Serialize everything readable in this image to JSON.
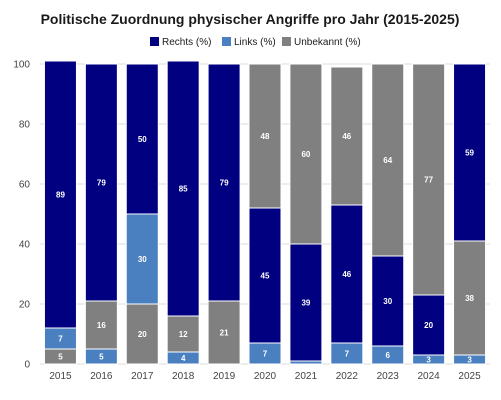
{
  "chart_data": {
    "type": "bar",
    "stacked": true,
    "title": "Politische Zuordnung physischer Angriffe pro Jahr (2015-2025)",
    "categories": [
      "2015",
      "2016",
      "2017",
      "2018",
      "2019",
      "2020",
      "2021",
      "2022",
      "2023",
      "2024",
      "2025"
    ],
    "series": [
      {
        "name": "Unbekannt (%)",
        "color": "#808080",
        "values": [
          5,
          16,
          20,
          12,
          21,
          48,
          60,
          46,
          64,
          77,
          38
        ]
      },
      {
        "name": "Links (%)",
        "color": "#4a7fc0",
        "values": [
          7,
          5,
          30,
          4,
          0,
          7,
          1,
          7,
          6,
          3,
          3
        ]
      },
      {
        "name": "Rechts (%)",
        "color": "#000080",
        "values": [
          89,
          79,
          50,
          85,
          79,
          45,
          39,
          46,
          30,
          20,
          59
        ]
      }
    ],
    "stack_order_bottom_to_top": [
      [
        "Unbekannt (%)",
        "Links (%)",
        "Rechts (%)"
      ],
      [
        "Links (%)",
        "Unbekannt (%)",
        "Rechts (%)"
      ],
      [
        "Unbekannt (%)",
        "Links (%)",
        "Rechts (%)"
      ],
      [
        "Links (%)",
        "Unbekannt (%)",
        "Rechts (%)"
      ],
      [
        "Unbekannt (%)",
        "Links (%)",
        "Rechts (%)"
      ],
      [
        "Links (%)",
        "Rechts (%)",
        "Unbekannt (%)"
      ],
      [
        "Links (%)",
        "Rechts (%)",
        "Unbekannt (%)"
      ],
      [
        "Links (%)",
        "Rechts (%)",
        "Unbekannt (%)"
      ],
      [
        "Links (%)",
        "Rechts (%)",
        "Unbekannt (%)"
      ],
      [
        "Links (%)",
        "Rechts (%)",
        "Unbekannt (%)"
      ],
      [
        "Links (%)",
        "Unbekannt (%)",
        "Rechts (%)"
      ]
    ],
    "legend_order": [
      "Rechts (%)",
      "Links (%)",
      "Unbekannt (%)"
    ],
    "legend_position": "top-right",
    "ylim": [
      0,
      100
    ],
    "yticks": [
      0,
      20,
      40,
      60,
      80,
      100
    ],
    "grid": "horizontal",
    "xlabel": "",
    "ylabel": ""
  }
}
